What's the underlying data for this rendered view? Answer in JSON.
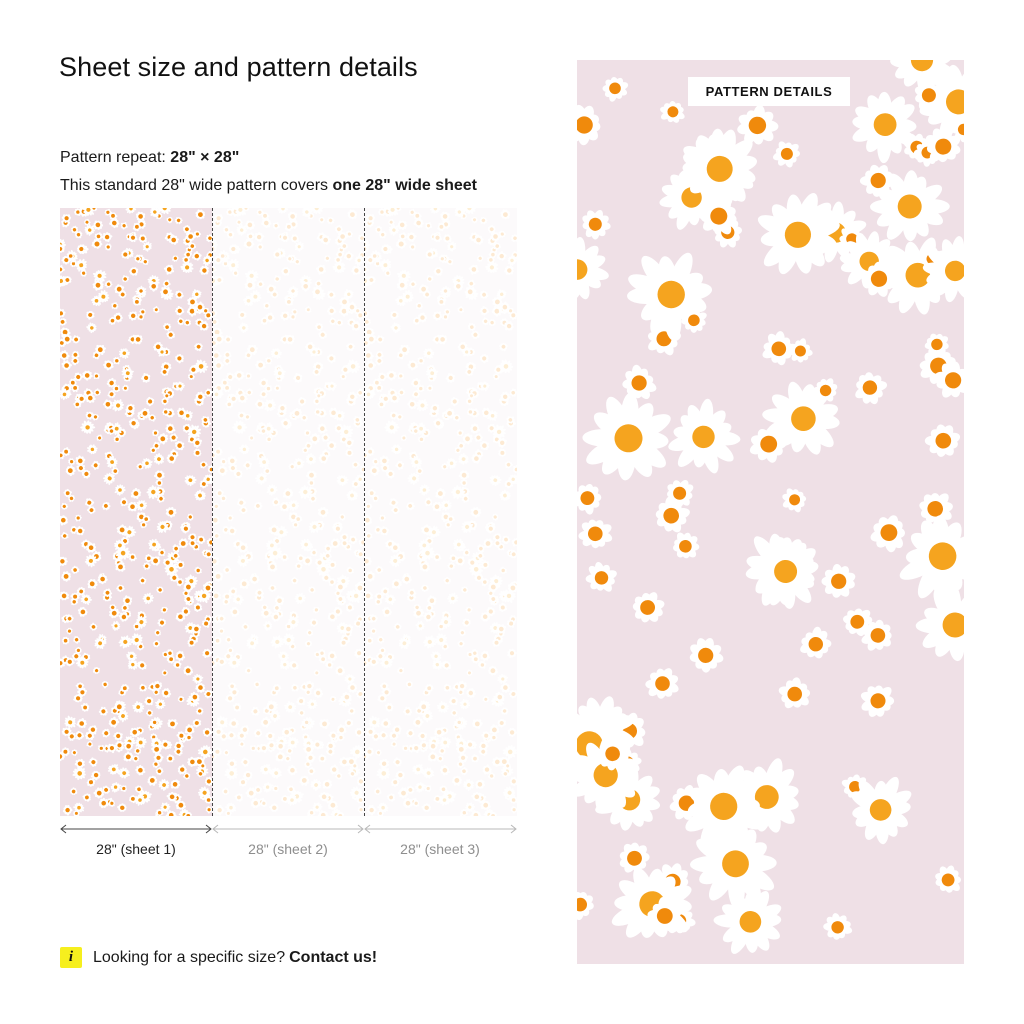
{
  "page": {
    "title": "Sheet size and pattern details",
    "pattern_repeat_label": "Pattern repeat: ",
    "pattern_repeat_value": "28\" × 28\"",
    "coverage_prefix": "This standard 28\" wide pattern covers ",
    "coverage_value": "one 28\" wide sheet"
  },
  "sheets": {
    "labels": [
      "28\" (sheet 1)",
      "28\" (sheet 2)",
      "28\" (sheet 3)"
    ]
  },
  "help": {
    "icon": "info-icon",
    "text": "Looking for a specific size?",
    "link": "Contact us!"
  },
  "detail": {
    "tag": "PATTERN DETAILS"
  },
  "colors": {
    "background_pink": "#efe0e6",
    "petal": "#ffffff",
    "center_orange": "#f5a41f",
    "center_dark_orange": "#f08a0c",
    "badge_yellow": "#f6ef1e"
  }
}
